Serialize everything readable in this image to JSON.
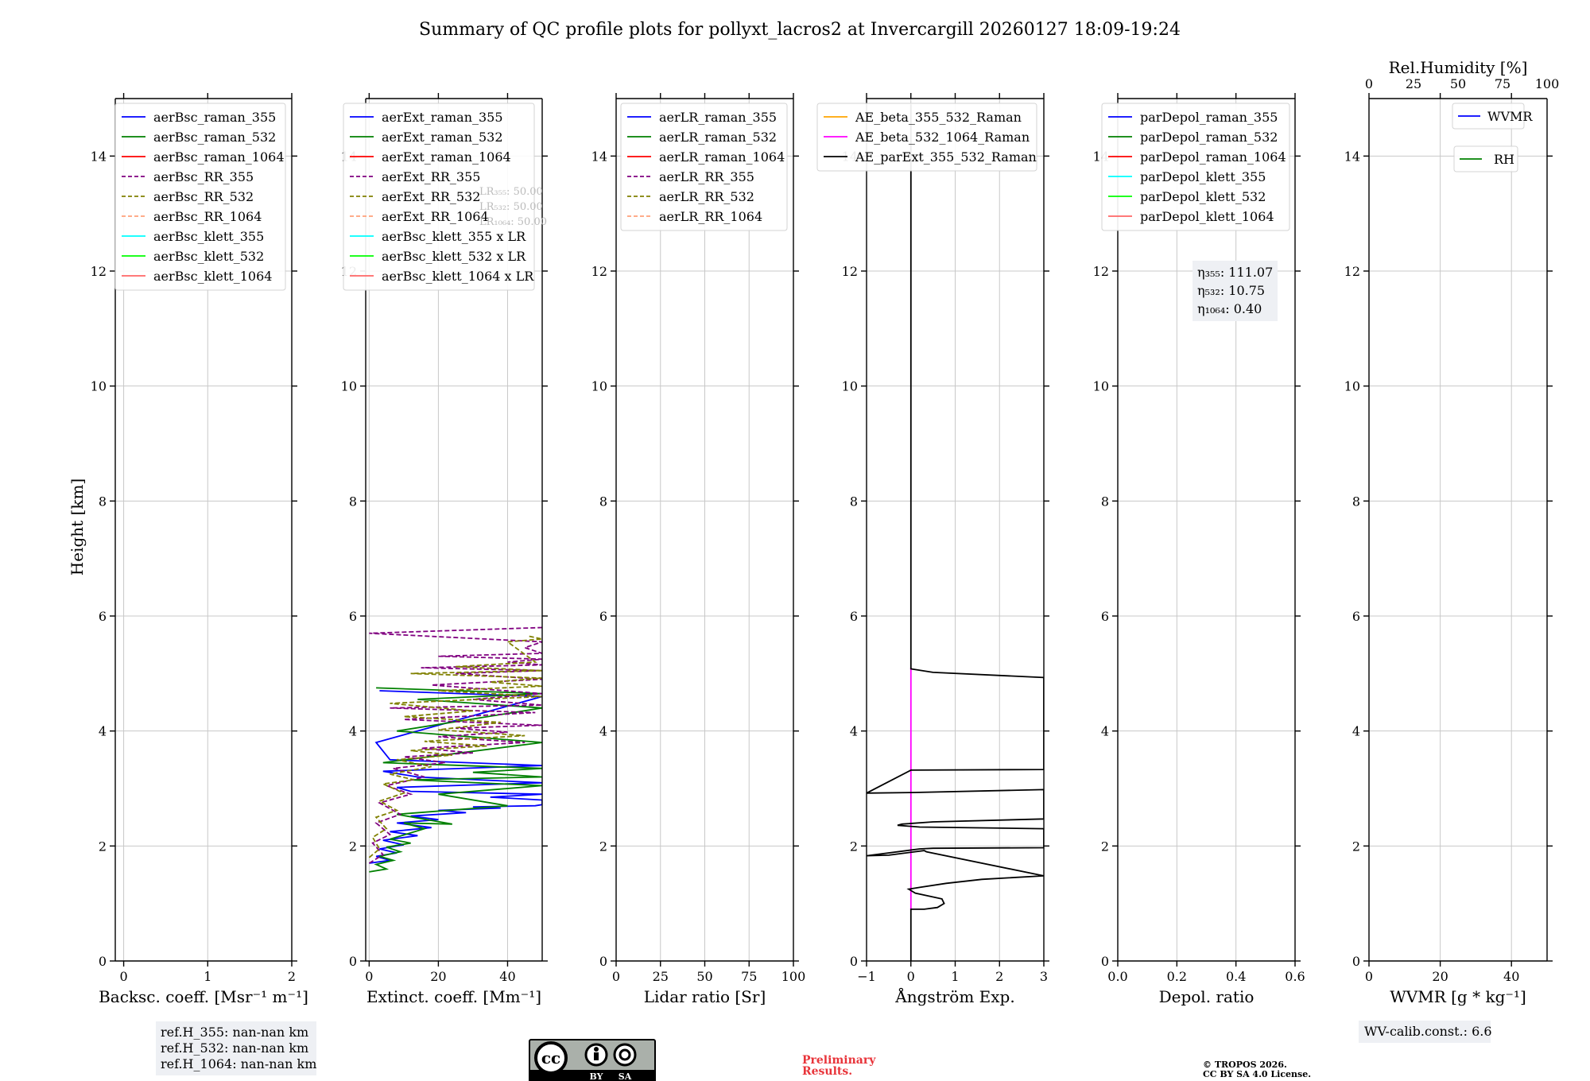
{
  "figure": {
    "title": "Summary of QC profile plots for pollyxt_lacros2 at Invercargill 20260127 18:09-19:24",
    "ylabel": "Height [km]",
    "ref_heights": [
      "ref.H_355: nan-nan km",
      "ref.H_532: nan-nan km",
      "ref.H_1064: nan-nan km"
    ],
    "preliminary": [
      "Preliminary",
      "Results."
    ],
    "copyright": [
      "© TROPOS 2026.",
      "CC BY SA 4.0 License."
    ],
    "wv_calib": "WV-calib.const.: 6.6",
    "license_badge": {
      "cc": "cc",
      "by": "BY",
      "sa": "SA"
    },
    "colors": {
      "raman355": "#0000ff",
      "raman532": "#008000",
      "raman1064": "#ff0000",
      "rr355": "#800080",
      "rr532": "#808000",
      "rr1064": "#ffa07a",
      "klett355": "#00ffff",
      "klett532": "#00ff00",
      "klett1064": "#ff6666",
      "ae_beta_355_532": "#ffa500",
      "ae_beta_532_1064": "#ff00ff",
      "ae_parext": "#000000"
    }
  },
  "chart_data": [
    {
      "type": "line",
      "id": "backscatter",
      "xlabel": "Backsc. coeff. [Msr⁻¹ m⁻¹]",
      "ylabel": "Height [km]",
      "xlim": [
        -0.1,
        2
      ],
      "ylim": [
        0,
        15
      ],
      "xticks": [
        0,
        1,
        2
      ],
      "xtick_labels": [
        "0",
        "1",
        "2"
      ],
      "yticks": [
        0,
        2,
        4,
        6,
        8,
        10,
        12,
        14
      ],
      "grid": true,
      "legend_position": "top-right",
      "legend": [
        {
          "label": "aerBsc_raman_355",
          "color": "#0000ff",
          "dash": false
        },
        {
          "label": "aerBsc_raman_532",
          "color": "#008000",
          "dash": false
        },
        {
          "label": "aerBsc_raman_1064",
          "color": "#ff0000",
          "dash": false
        },
        {
          "label": "aerBsc_RR_355",
          "color": "#800080",
          "dash": true
        },
        {
          "label": "aerBsc_RR_532",
          "color": "#808000",
          "dash": true
        },
        {
          "label": "aerBsc_RR_1064",
          "color": "#ffa07a",
          "dash": true
        },
        {
          "label": "aerBsc_klett_355",
          "color": "#00ffff",
          "dash": false
        },
        {
          "label": "aerBsc_klett_532",
          "color": "#00ff00",
          "dash": false
        },
        {
          "label": "aerBsc_klett_1064",
          "color": "#ff6666",
          "dash": false
        }
      ],
      "series": []
    },
    {
      "type": "line",
      "id": "extinction",
      "xlabel": "Extinct. coeff. [Mm⁻¹]",
      "xlim": [
        -1,
        50
      ],
      "ylim": [
        0,
        15
      ],
      "xticks": [
        0,
        20,
        40
      ],
      "xtick_labels": [
        "0",
        "20",
        "40"
      ],
      "yticks": [
        0,
        2,
        4,
        6,
        8,
        10,
        12,
        14
      ],
      "grid": true,
      "legend_position": "top-left",
      "legend": [
        {
          "label": "aerExt_raman_355",
          "color": "#0000ff",
          "dash": false
        },
        {
          "label": "aerExt_raman_532",
          "color": "#008000",
          "dash": false
        },
        {
          "label": "aerExt_raman_1064",
          "color": "#ff0000",
          "dash": false
        },
        {
          "label": "aerExt_RR_355",
          "color": "#800080",
          "dash": true
        },
        {
          "label": "aerExt_RR_532",
          "color": "#808000",
          "dash": true
        },
        {
          "label": "aerExt_RR_1064",
          "color": "#ffa07a",
          "dash": true
        },
        {
          "label": "aerBsc_klett_355 x LR",
          "color": "#00ffff",
          "dash": false
        },
        {
          "label": "aerBsc_klett_532 x LR",
          "color": "#00ff00",
          "dash": false
        },
        {
          "label": "aerBsc_klett_1064 x LR",
          "color": "#ff6666",
          "dash": false
        }
      ],
      "lr_annotation": [
        "LR₃₅₅: 50.00",
        "LR₅₃₂: 50.00",
        "LR₁₀₆₄: 50.00"
      ],
      "series": [
        {
          "name": "aerExt_raman_355",
          "color": "#0000ff",
          "dash": false,
          "x": [
            0,
            6,
            2,
            8,
            3,
            10,
            4,
            14,
            6,
            18,
            8,
            20,
            12,
            28,
            20,
            38,
            30,
            48,
            50,
            50,
            35,
            50,
            12,
            8,
            50,
            14,
            4,
            50,
            6,
            2,
            50,
            3
          ],
          "y": [
            1.7,
            1.75,
            1.82,
            1.88,
            1.95,
            2.02,
            2.1,
            2.18,
            2.25,
            2.32,
            2.4,
            2.46,
            2.52,
            2.58,
            2.62,
            2.66,
            2.68,
            2.7,
            2.72,
            2.8,
            2.85,
            2.9,
            2.95,
            3.02,
            3.1,
            3.2,
            3.3,
            3.4,
            3.5,
            3.8,
            4.6,
            4.7
          ]
        },
        {
          "name": "aerExt_raman_532",
          "color": "#008000",
          "dash": false,
          "x": [
            0,
            5,
            2,
            7,
            3,
            9,
            5,
            12,
            6,
            16,
            10,
            24,
            8,
            40,
            20,
            50,
            12,
            50,
            30,
            50,
            4,
            50,
            8,
            50,
            14,
            50,
            2
          ],
          "y": [
            1.55,
            1.6,
            1.68,
            1.75,
            1.82,
            1.9,
            1.98,
            2.05,
            2.12,
            2.3,
            2.4,
            2.38,
            2.55,
            2.7,
            2.9,
            3.05,
            3.15,
            3.2,
            3.28,
            3.35,
            3.45,
            3.8,
            4.0,
            4.4,
            4.55,
            4.65,
            4.75
          ]
        },
        {
          "name": "aerExt_RR_355",
          "color": "#800080",
          "dash": true,
          "x": [
            0,
            4,
            1,
            6,
            2,
            9,
            3,
            12,
            5,
            16,
            7,
            22,
            10,
            30,
            15,
            45,
            20,
            40,
            25,
            50,
            10,
            48,
            6,
            50,
            30,
            50,
            18,
            50,
            25,
            50,
            15,
            50,
            40,
            50,
            20,
            50,
            45,
            50,
            0,
            50
          ],
          "y": [
            1.7,
            1.85,
            2.05,
            2.2,
            2.4,
            2.55,
            2.75,
            2.9,
            3.05,
            3.2,
            3.35,
            3.45,
            3.55,
            3.62,
            3.7,
            3.8,
            3.9,
            3.98,
            4.05,
            4.1,
            4.2,
            4.32,
            4.4,
            4.45,
            4.55,
            4.65,
            4.8,
            4.9,
            5.0,
            5.05,
            5.1,
            5.15,
            5.2,
            5.25,
            5.3,
            5.35,
            5.45,
            5.55,
            5.7,
            5.8
          ]
        },
        {
          "name": "aerExt_RR_532",
          "color": "#808000",
          "dash": true,
          "x": [
            0,
            3,
            1,
            5,
            2,
            8,
            3,
            10,
            4,
            13,
            6,
            18,
            8,
            24,
            12,
            34,
            16,
            45,
            20,
            38,
            10,
            30,
            6,
            50,
            20,
            50,
            35,
            50,
            12,
            50,
            25,
            48,
            40,
            50,
            46
          ],
          "y": [
            1.8,
            1.95,
            2.15,
            2.3,
            2.5,
            2.62,
            2.78,
            2.92,
            3.08,
            3.15,
            3.25,
            3.38,
            3.5,
            3.58,
            3.66,
            3.74,
            3.82,
            3.92,
            4.02,
            4.15,
            4.25,
            4.35,
            4.48,
            4.6,
            4.7,
            4.78,
            4.85,
            4.92,
            5.0,
            5.05,
            5.12,
            5.2,
            5.55,
            5.6,
            5.65
          ]
        }
      ]
    },
    {
      "type": "line",
      "id": "lidar_ratio",
      "xlabel": "Lidar ratio [Sr]",
      "xlim": [
        0,
        100
      ],
      "ylim": [
        0,
        15
      ],
      "xticks": [
        0,
        25,
        50,
        75,
        100
      ],
      "xtick_labels": [
        "0",
        "25",
        "50",
        "75",
        "100"
      ],
      "yticks": [
        0,
        2,
        4,
        6,
        8,
        10,
        12,
        14
      ],
      "grid": true,
      "legend_position": "top-left",
      "legend": [
        {
          "label": "aerLR_raman_355",
          "color": "#0000ff",
          "dash": false
        },
        {
          "label": "aerLR_raman_532",
          "color": "#008000",
          "dash": false
        },
        {
          "label": "aerLR_raman_1064",
          "color": "#ff0000",
          "dash": false
        },
        {
          "label": "aerLR_RR_355",
          "color": "#800080",
          "dash": true
        },
        {
          "label": "aerLR_RR_532",
          "color": "#808000",
          "dash": true
        },
        {
          "label": "aerLR_RR_1064",
          "color": "#ffa07a",
          "dash": true
        }
      ],
      "series": []
    },
    {
      "type": "line",
      "id": "angstrom",
      "xlabel": "Ångström Exp.",
      "xlim": [
        -1,
        3
      ],
      "ylim": [
        0,
        15
      ],
      "xticks": [
        -1,
        0,
        1,
        2,
        3
      ],
      "xtick_labels": [
        "−1",
        "0",
        "1",
        "2",
        "3"
      ],
      "yticks": [
        0,
        2,
        4,
        6,
        8,
        10,
        12,
        14
      ],
      "grid": true,
      "legend_position": "top-left",
      "legend": [
        {
          "label": "AE_beta_355_532_Raman",
          "color": "#ffa500",
          "dash": false
        },
        {
          "label": "AE_beta_532_1064_Raman",
          "color": "#ff00ff",
          "dash": false
        },
        {
          "label": "AE_parExt_355_532_Raman",
          "color": "#000000",
          "dash": false
        }
      ],
      "series": [
        {
          "name": "AE_beta_532_1064_Raman",
          "color": "#ff00ff",
          "dash": false,
          "x": [
            0,
            0
          ],
          "y": [
            0.9,
            5.1
          ]
        },
        {
          "name": "AE_parExt_355_532_Raman",
          "color": "#000000",
          "dash": false,
          "x": [
            0,
            0,
            0.3,
            0.6,
            0.75,
            0.7,
            0.4,
            0.1,
            -0.05,
            0.2,
            0.8,
            1.6,
            3,
            3,
            0.35,
            0.3,
            -0.5,
            -1,
            -1,
            0.2,
            0.5,
            3,
            3,
            0.2,
            -0.3,
            -0.2,
            0.5,
            3,
            3,
            0,
            -1,
            -1,
            0,
            0,
            3,
            3,
            0.5,
            0,
            0
          ],
          "y": [
            0,
            0.9,
            0.9,
            0.93,
            1.0,
            1.08,
            1.13,
            1.18,
            1.25,
            1.28,
            1.35,
            1.42,
            1.48,
            1.48,
            1.9,
            1.92,
            1.84,
            1.83,
            1.83,
            1.95,
            1.96,
            1.97,
            2.3,
            2.33,
            2.36,
            2.38,
            2.42,
            2.47,
            2.98,
            2.93,
            2.92,
            2.92,
            3.32,
            3.32,
            3.33,
            4.93,
            5.02,
            5.08,
            14.9
          ]
        }
      ]
    },
    {
      "type": "line",
      "id": "depol",
      "xlabel": "Depol. ratio",
      "xlim": [
        0,
        0.6
      ],
      "ylim": [
        0,
        15
      ],
      "xticks": [
        0.0,
        0.2,
        0.4,
        0.6
      ],
      "xtick_labels": [
        "0.0",
        "0.2",
        "0.4",
        "0.6"
      ],
      "yticks": [
        0,
        2,
        4,
        6,
        8,
        10,
        12,
        14
      ],
      "grid": true,
      "legend_position": "top-left",
      "legend": [
        {
          "label": "parDepol_raman_355",
          "color": "#0000ff",
          "dash": false
        },
        {
          "label": "parDepol_raman_532",
          "color": "#008000",
          "dash": false
        },
        {
          "label": "parDepol_raman_1064",
          "color": "#ff0000",
          "dash": false
        },
        {
          "label": "parDepol_klett_355",
          "color": "#00ffff",
          "dash": false
        },
        {
          "label": "parDepol_klett_532",
          "color": "#00ff00",
          "dash": false
        },
        {
          "label": "parDepol_klett_1064",
          "color": "#ff6666",
          "dash": false
        }
      ],
      "eta_annotation": [
        "η₃₅₅: 111.07",
        "η₅₃₂: 10.75",
        "η₁₀₆₄: 0.40"
      ],
      "series": []
    },
    {
      "type": "line",
      "id": "wvmr",
      "xlabel": "WVMR [g * kg⁻¹]",
      "top_xlabel": "Rel.Humidity [%]",
      "xlim": [
        0,
        50
      ],
      "top_xlim": [
        0,
        100
      ],
      "ylim": [
        0,
        15
      ],
      "xticks": [
        0,
        20,
        40
      ],
      "xtick_labels": [
        "0",
        "20",
        "40"
      ],
      "top_xticks": [
        0,
        25,
        50,
        75,
        100
      ],
      "top_xtick_labels": [
        "0",
        "25",
        "50",
        "75",
        "100"
      ],
      "yticks": [
        0,
        2,
        4,
        6,
        8,
        10,
        12,
        14
      ],
      "grid": true,
      "legend_position": "top-right",
      "legend": [
        {
          "label": "WVMR",
          "color": "#0000ff",
          "dash": false
        },
        {
          "label": "RH",
          "color": "#008000",
          "dash": false
        }
      ],
      "series": []
    }
  ]
}
